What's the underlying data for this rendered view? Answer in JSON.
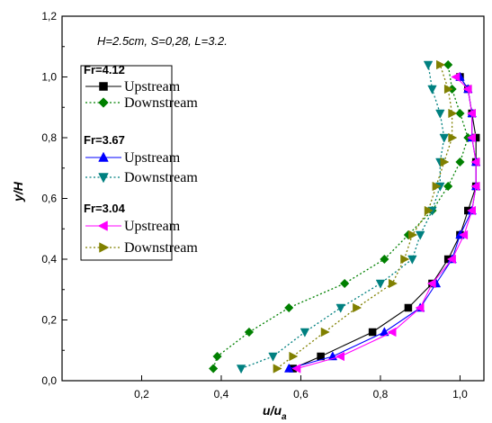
{
  "chart_data": {
    "type": "line",
    "annotation": "H=2.5cm, S=0,28, L=3.2.",
    "xlabel": "u/u",
    "xlabel_sub": "a",
    "ylabel": "y/H",
    "xlim": [
      0.0,
      1.06
    ],
    "ylim": [
      0.0,
      1.2
    ],
    "x_ticks": [
      {
        "value": 0.2,
        "label": "0,2"
      },
      {
        "value": 0.4,
        "label": "0,4"
      },
      {
        "value": 0.6,
        "label": "0,6"
      },
      {
        "value": 0.8,
        "label": "0,8"
      },
      {
        "value": 1.0,
        "label": "1,0"
      }
    ],
    "y_ticks": [
      {
        "value": 0.0,
        "label": "0,0"
      },
      {
        "value": 0.2,
        "label": "0,2"
      },
      {
        "value": 0.4,
        "label": "0,4"
      },
      {
        "value": 0.6,
        "label": "0,6"
      },
      {
        "value": 0.8,
        "label": "0,8"
      },
      {
        "value": 1.0,
        "label": "1,0"
      },
      {
        "value": 1.2,
        "label": "1,2"
      }
    ],
    "grid": false,
    "legend_position": "top-left",
    "legend_groups": [
      {
        "title": "Fr=4.12",
        "entries": [
          0,
          1
        ]
      },
      {
        "title": "Fr=3.67",
        "entries": [
          2,
          3
        ]
      },
      {
        "title": "Fr=3.04",
        "entries": [
          4,
          5
        ]
      }
    ],
    "series": [
      {
        "name": "Upstream",
        "color": "#000000",
        "marker": "square",
        "line": "solid",
        "points": [
          [
            0.58,
            0.04
          ],
          [
            0.65,
            0.08
          ],
          [
            0.78,
            0.16
          ],
          [
            0.87,
            0.24
          ],
          [
            0.93,
            0.32
          ],
          [
            0.97,
            0.4
          ],
          [
            1.0,
            0.48
          ],
          [
            1.02,
            0.56
          ],
          [
            1.04,
            0.64
          ],
          [
            1.04,
            0.72
          ],
          [
            1.04,
            0.8
          ],
          [
            1.03,
            0.88
          ],
          [
            1.02,
            0.96
          ],
          [
            1.0,
            1.0
          ]
        ]
      },
      {
        "name": "Downstream",
        "color": "#008000",
        "marker": "diamond",
        "line": "dotted",
        "points": [
          [
            0.38,
            0.04
          ],
          [
            0.39,
            0.08
          ],
          [
            0.47,
            0.16
          ],
          [
            0.57,
            0.24
          ],
          [
            0.71,
            0.32
          ],
          [
            0.81,
            0.4
          ],
          [
            0.87,
            0.48
          ],
          [
            0.93,
            0.56
          ],
          [
            0.97,
            0.64
          ],
          [
            1.0,
            0.72
          ],
          [
            1.02,
            0.8
          ],
          [
            1.0,
            0.88
          ],
          [
            0.98,
            0.96
          ],
          [
            0.97,
            1.04
          ]
        ]
      },
      {
        "name": "Upstream",
        "color": "#0000ff",
        "marker": "triangle-up",
        "line": "solid",
        "points": [
          [
            0.57,
            0.04
          ],
          [
            0.68,
            0.08
          ],
          [
            0.81,
            0.16
          ],
          [
            0.9,
            0.24
          ],
          [
            0.94,
            0.32
          ],
          [
            0.98,
            0.4
          ],
          [
            1.0,
            0.48
          ],
          [
            1.03,
            0.56
          ],
          [
            1.04,
            0.64
          ],
          [
            1.04,
            0.72
          ],
          [
            1.03,
            0.8
          ],
          [
            1.03,
            0.88
          ],
          [
            1.02,
            0.96
          ],
          [
            1.0,
            1.0
          ]
        ]
      },
      {
        "name": "Downstream",
        "color": "#008080",
        "marker": "triangle-down",
        "line": "dotted",
        "points": [
          [
            0.45,
            0.04
          ],
          [
            0.53,
            0.08
          ],
          [
            0.61,
            0.16
          ],
          [
            0.7,
            0.24
          ],
          [
            0.8,
            0.32
          ],
          [
            0.88,
            0.4
          ],
          [
            0.9,
            0.48
          ],
          [
            0.93,
            0.56
          ],
          [
            0.95,
            0.64
          ],
          [
            0.95,
            0.72
          ],
          [
            0.96,
            0.8
          ],
          [
            0.95,
            0.88
          ],
          [
            0.93,
            0.96
          ],
          [
            0.92,
            1.04
          ]
        ]
      },
      {
        "name": "Upstream",
        "color": "#ff00ff",
        "marker": "triangle-left",
        "line": "solid",
        "points": [
          [
            0.59,
            0.04
          ],
          [
            0.7,
            0.08
          ],
          [
            0.83,
            0.16
          ],
          [
            0.9,
            0.24
          ],
          [
            0.93,
            0.32
          ],
          [
            0.98,
            0.4
          ],
          [
            1.01,
            0.48
          ],
          [
            1.03,
            0.56
          ],
          [
            1.04,
            0.64
          ],
          [
            1.04,
            0.72
          ],
          [
            1.03,
            0.8
          ],
          [
            1.03,
            0.88
          ],
          [
            1.02,
            0.96
          ],
          [
            0.99,
            1.0
          ]
        ]
      },
      {
        "name": "Downstream",
        "color": "#808000",
        "marker": "triangle-right",
        "line": "dotted",
        "points": [
          [
            0.54,
            0.04
          ],
          [
            0.58,
            0.08
          ],
          [
            0.66,
            0.16
          ],
          [
            0.74,
            0.24
          ],
          [
            0.83,
            0.32
          ],
          [
            0.86,
            0.4
          ],
          [
            0.88,
            0.48
          ],
          [
            0.92,
            0.56
          ],
          [
            0.94,
            0.64
          ],
          [
            0.96,
            0.72
          ],
          [
            0.98,
            0.8
          ],
          [
            0.98,
            0.88
          ],
          [
            0.97,
            0.96
          ],
          [
            0.95,
            1.04
          ]
        ]
      }
    ]
  }
}
